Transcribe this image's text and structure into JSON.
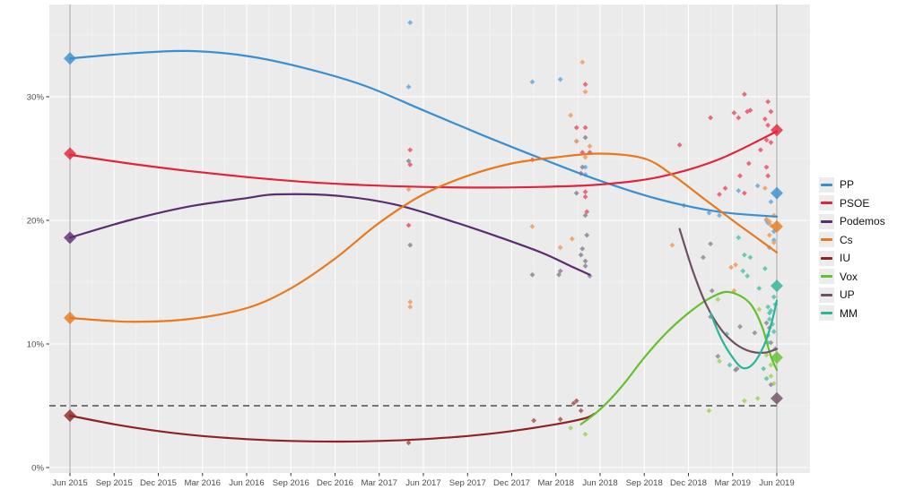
{
  "chart_data": {
    "type": "scatter",
    "description": "Opinion polling scatter with LOESS smoothed trend lines per party; diamonds mark election results; dashed line is 5% threshold",
    "title": "",
    "x_axis": {
      "tick_labels": [
        "Jun 2015",
        "Sep 2015",
        "Dec 2015",
        "Mar 2016",
        "Jun 2016",
        "Sep 2016",
        "Dec 2016",
        "Mar 2017",
        "Jun 2017",
        "Sep 2017",
        "Dec 2017",
        "Mar 2018",
        "Jun 2018",
        "Sep 2018",
        "Dec 2018",
        "Mar 2019",
        "Jun 2019"
      ],
      "tick_months": [
        0,
        3,
        6,
        9,
        12,
        15,
        18,
        21,
        24,
        27,
        30,
        33,
        36,
        39,
        42,
        45,
        48
      ]
    },
    "y_axis": {
      "tick_labels": [
        "0%",
        "10%",
        "20%",
        "30%"
      ],
      "tick_values": [
        0,
        10,
        20,
        30
      ],
      "range": [
        0,
        37.5
      ]
    },
    "threshold_line": {
      "value": 5,
      "style": "dashed",
      "color": "#4d4d4d"
    },
    "event_lines": {
      "months": [
        0,
        48
      ],
      "color": "#c6c6c6"
    },
    "panel": {
      "bg": "#ebebeb",
      "grid_major": "#ffffff",
      "grid_minor": "#f5f5f5"
    },
    "series": [
      {
        "id": "pp",
        "name": "PP",
        "color": "#3a8fd1",
        "point_color": "#68a9dc",
        "line": [
          [
            0,
            33.1
          ],
          [
            4,
            33.5
          ],
          [
            8,
            33.7
          ],
          [
            12,
            33.3
          ],
          [
            16,
            32.3
          ],
          [
            20,
            30.9
          ],
          [
            24,
            28.9
          ],
          [
            28,
            26.9
          ],
          [
            32,
            25.0
          ],
          [
            36,
            23.2
          ],
          [
            40,
            21.7
          ],
          [
            44,
            20.7
          ],
          [
            48,
            20.3
          ]
        ],
        "elections": [
          [
            0,
            33.1
          ],
          [
            48,
            22.2
          ]
        ],
        "points": [
          [
            23.1,
            36.0
          ],
          [
            23.0,
            30.8
          ],
          [
            31.4,
            31.2
          ],
          [
            33.3,
            31.4
          ],
          [
            34.4,
            26.4
          ],
          [
            35.0,
            24.3
          ],
          [
            35.0,
            23.7
          ],
          [
            41.7,
            21.2
          ],
          [
            43.4,
            20.6
          ],
          [
            44.1,
            20.4
          ],
          [
            45.4,
            22.4
          ],
          [
            46.7,
            22.8
          ],
          [
            47.3,
            20.0
          ],
          [
            47.4,
            19.8
          ],
          [
            47.6,
            21.5
          ],
          [
            47.8,
            19.1
          ],
          [
            47.8,
            18.4
          ],
          [
            47.5,
            17.8
          ]
        ]
      },
      {
        "id": "psoe",
        "name": "PSOE",
        "color": "#e1243a",
        "point_color": "#e85468",
        "line": [
          [
            0,
            25.3
          ],
          [
            4,
            24.6
          ],
          [
            8,
            24.0
          ],
          [
            12,
            23.5
          ],
          [
            16,
            23.1
          ],
          [
            20,
            22.85
          ],
          [
            24,
            22.7
          ],
          [
            28,
            22.65
          ],
          [
            32,
            22.7
          ],
          [
            36,
            22.9
          ],
          [
            40,
            23.5
          ],
          [
            44,
            24.9
          ],
          [
            48,
            27.2
          ]
        ],
        "elections": [
          [
            0,
            25.4
          ],
          [
            48,
            27.3
          ]
        ],
        "points": [
          [
            23.1,
            25.7
          ],
          [
            23.1,
            24.5
          ],
          [
            23.0,
            19.6
          ],
          [
            31.4,
            24.9
          ],
          [
            35.0,
            31.0
          ],
          [
            34.4,
            27.5
          ],
          [
            35.0,
            27.5
          ],
          [
            34.8,
            25.5
          ],
          [
            35.3,
            25.5
          ],
          [
            34.7,
            23.8
          ],
          [
            35.0,
            22.3
          ],
          [
            35.0,
            21.9
          ],
          [
            35.1,
            20.7
          ],
          [
            41.4,
            26.1
          ],
          [
            43.5,
            28.3
          ],
          [
            44.1,
            22.1
          ],
          [
            44.5,
            22.6
          ],
          [
            45.1,
            28.7
          ],
          [
            45.4,
            28.3
          ],
          [
            45.5,
            23.6
          ],
          [
            45.8,
            30.2
          ],
          [
            45.8,
            22.2
          ],
          [
            46.0,
            28.8
          ],
          [
            46.1,
            24.6
          ],
          [
            46.2,
            28.9
          ],
          [
            46.9,
            25.7
          ],
          [
            47.3,
            26.5
          ],
          [
            47.2,
            28.2
          ],
          [
            47.3,
            24.3
          ],
          [
            47.4,
            29.6
          ],
          [
            47.4,
            27.7
          ],
          [
            47.4,
            23.6
          ],
          [
            47.6,
            28.8
          ],
          [
            47.6,
            26.3
          ]
        ]
      },
      {
        "id": "podemos",
        "name": "Podemos",
        "color": "#5b2c6f",
        "point_color": "#8c8496",
        "line": [
          [
            0,
            18.6
          ],
          [
            4,
            20.0
          ],
          [
            8,
            21.1
          ],
          [
            12,
            21.8
          ],
          [
            14,
            22.1
          ],
          [
            18,
            22.0
          ],
          [
            22,
            21.3
          ],
          [
            26,
            19.9
          ],
          [
            29,
            18.7
          ],
          [
            32,
            17.4
          ],
          [
            34,
            16.3
          ],
          [
            35.3,
            15.6
          ]
        ],
        "elections": [
          [
            0,
            18.6
          ]
        ],
        "points": [
          [
            23.0,
            24.8
          ],
          [
            23.1,
            18.0
          ],
          [
            31.4,
            15.6
          ],
          [
            33.3,
            15.9
          ],
          [
            34.4,
            22.2
          ],
          [
            34.8,
            24.3
          ],
          [
            35.0,
            26.7
          ],
          [
            35.0,
            20.4
          ],
          [
            35.1,
            18.8
          ],
          [
            34.7,
            17.2
          ],
          [
            34.8,
            17.7
          ],
          [
            35.0,
            16.7
          ],
          [
            35.0,
            16.3
          ],
          [
            33.2,
            15.6
          ],
          [
            35.3,
            15.5
          ]
        ]
      },
      {
        "id": "cs",
        "name": "Cs",
        "color": "#e8791e",
        "point_color": "#f09c5c",
        "line": [
          [
            0,
            12.1
          ],
          [
            4,
            11.8
          ],
          [
            8,
            12.0
          ],
          [
            12,
            12.9
          ],
          [
            15,
            14.5
          ],
          [
            18,
            16.9
          ],
          [
            21,
            19.8
          ],
          [
            24,
            22.1
          ],
          [
            27,
            23.6
          ],
          [
            30,
            24.6
          ],
          [
            33,
            25.1
          ],
          [
            36,
            25.4
          ],
          [
            39,
            25.0
          ],
          [
            41,
            23.6
          ],
          [
            43,
            21.8
          ],
          [
            45,
            20.0
          ],
          [
            46.5,
            18.7
          ],
          [
            48,
            17.4
          ]
        ],
        "elections": [
          [
            0,
            12.1
          ],
          [
            48,
            19.5
          ]
        ],
        "points": [
          [
            23.0,
            22.5
          ],
          [
            23.1,
            13.4
          ],
          [
            23.1,
            13.0
          ],
          [
            31.4,
            19.5
          ],
          [
            33.3,
            17.8
          ],
          [
            34.1,
            18.5
          ],
          [
            34.0,
            28.5
          ],
          [
            34.8,
            32.8
          ],
          [
            35.0,
            30.4
          ],
          [
            34.4,
            26.4
          ],
          [
            35.3,
            26.0
          ],
          [
            35.0,
            25.1
          ],
          [
            40.9,
            18.0
          ],
          [
            45.2,
            16.4
          ],
          [
            44.9,
            16.2
          ],
          [
            45.1,
            14.3
          ],
          [
            47.2,
            22.6
          ],
          [
            47.3,
            20.1
          ],
          [
            47.5,
            19.9
          ],
          [
            47.6,
            19.6
          ],
          [
            47.8,
            20.4
          ],
          [
            47.5,
            18.8
          ],
          [
            47.8,
            18.2
          ]
        ]
      },
      {
        "id": "iu",
        "name": "IU",
        "color": "#8e2323",
        "point_color": "#a85555",
        "line": [
          [
            0,
            4.2
          ],
          [
            3,
            3.5
          ],
          [
            6,
            2.95
          ],
          [
            9,
            2.55
          ],
          [
            12,
            2.3
          ],
          [
            15,
            2.15
          ],
          [
            18,
            2.1
          ],
          [
            21,
            2.15
          ],
          [
            24,
            2.3
          ],
          [
            27,
            2.55
          ],
          [
            30,
            2.95
          ],
          [
            33,
            3.5
          ],
          [
            35,
            4.0
          ],
          [
            35.6,
            4.35
          ]
        ],
        "elections": [
          [
            0,
            4.2
          ]
        ],
        "points": [
          [
            23.0,
            2.0
          ],
          [
            31.5,
            3.8
          ],
          [
            33.3,
            3.9
          ],
          [
            34.4,
            5.4
          ],
          [
            34.7,
            4.6
          ],
          [
            34.2,
            5.2
          ]
        ]
      },
      {
        "id": "vox",
        "name": "Vox",
        "color": "#63c02e",
        "point_color": "#a2d45e",
        "line": [
          [
            34.7,
            3.5
          ],
          [
            36,
            4.7
          ],
          [
            37.5,
            6.6
          ],
          [
            39,
            8.9
          ],
          [
            40.5,
            10.9
          ],
          [
            42,
            12.5
          ],
          [
            43.3,
            13.6
          ],
          [
            44.5,
            14.2
          ],
          [
            45.5,
            13.9
          ],
          [
            46.3,
            13.1
          ],
          [
            47,
            11.4
          ],
          [
            47.6,
            9.0
          ],
          [
            48,
            7.9
          ]
        ],
        "elections": [
          [
            48,
            8.9
          ]
        ],
        "points": [
          [
            34.0,
            3.2
          ],
          [
            35.0,
            2.7
          ],
          [
            43.4,
            4.6
          ],
          [
            44.0,
            13.6
          ],
          [
            44.1,
            8.6
          ],
          [
            46.8,
            12.8
          ],
          [
            47.3,
            9.1
          ],
          [
            47.6,
            8.3
          ],
          [
            47.6,
            7.4
          ],
          [
            47.8,
            6.8
          ],
          [
            46.7,
            5.6
          ],
          [
            45.8,
            5.4
          ]
        ]
      },
      {
        "id": "up",
        "name": "UP",
        "color": "#6e5063",
        "point_color": "#918a95",
        "line": [
          [
            41.4,
            19.3
          ],
          [
            42.3,
            15.9
          ],
          [
            43.2,
            13.2
          ],
          [
            44.2,
            11.2
          ],
          [
            45.2,
            10.0
          ],
          [
            46.2,
            9.4
          ],
          [
            47.2,
            9.3
          ],
          [
            48,
            9.6
          ]
        ],
        "elections": [
          [
            48,
            5.6
          ]
        ],
        "points": [
          [
            43.0,
            17.0
          ],
          [
            43.5,
            18.1
          ],
          [
            43.6,
            14.3
          ],
          [
            43.5,
            12.2
          ],
          [
            44.0,
            9.0
          ],
          [
            45.2,
            7.9
          ],
          [
            45.3,
            8.0
          ],
          [
            45.5,
            11.4
          ],
          [
            46.5,
            10.9
          ],
          [
            47.3,
            11.7
          ],
          [
            47.5,
            11.3
          ],
          [
            47.6,
            10.1
          ],
          [
            47.9,
            9.6
          ],
          [
            47.6,
            6.7
          ]
        ]
      },
      {
        "id": "mm",
        "name": "MM",
        "color": "#29b597",
        "point_color": "#54c3ab",
        "line": [
          [
            43.5,
            12.5
          ],
          [
            44.2,
            10.5
          ],
          [
            45,
            8.9
          ],
          [
            45.7,
            8.05
          ],
          [
            46.4,
            8.4
          ],
          [
            47.1,
            9.8
          ],
          [
            47.6,
            11.5
          ],
          [
            48,
            13.5
          ]
        ],
        "elections": [
          [
            48,
            14.7
          ]
        ],
        "points": [
          [
            44.6,
            10.8
          ],
          [
            44.8,
            8.3
          ],
          [
            45.7,
            15.9
          ],
          [
            46.0,
            15.5
          ],
          [
            45.8,
            17.2
          ],
          [
            46.2,
            17.0
          ],
          [
            46.8,
            14.5
          ],
          [
            47.1,
            8.0
          ],
          [
            47.3,
            7.2
          ],
          [
            47.4,
            13.0
          ],
          [
            47.5,
            12.5
          ],
          [
            47.5,
            12.0
          ],
          [
            47.6,
            12.7
          ],
          [
            47.7,
            11.6
          ],
          [
            47.8,
            11.0
          ],
          [
            47.4,
            10.1
          ],
          [
            47.8,
            13.8
          ],
          [
            47.9,
            13.2
          ],
          [
            47.4,
            10.7
          ],
          [
            47.2,
            16.1
          ],
          [
            45.4,
            18.6
          ]
        ]
      }
    ],
    "legend": {
      "position": "right",
      "entries": [
        "PP",
        "PSOE",
        "Podemos",
        "Cs",
        "IU",
        "Vox",
        "UP",
        "MM"
      ]
    }
  },
  "layout_text": {
    "axis_color": "#4d4d4d"
  }
}
